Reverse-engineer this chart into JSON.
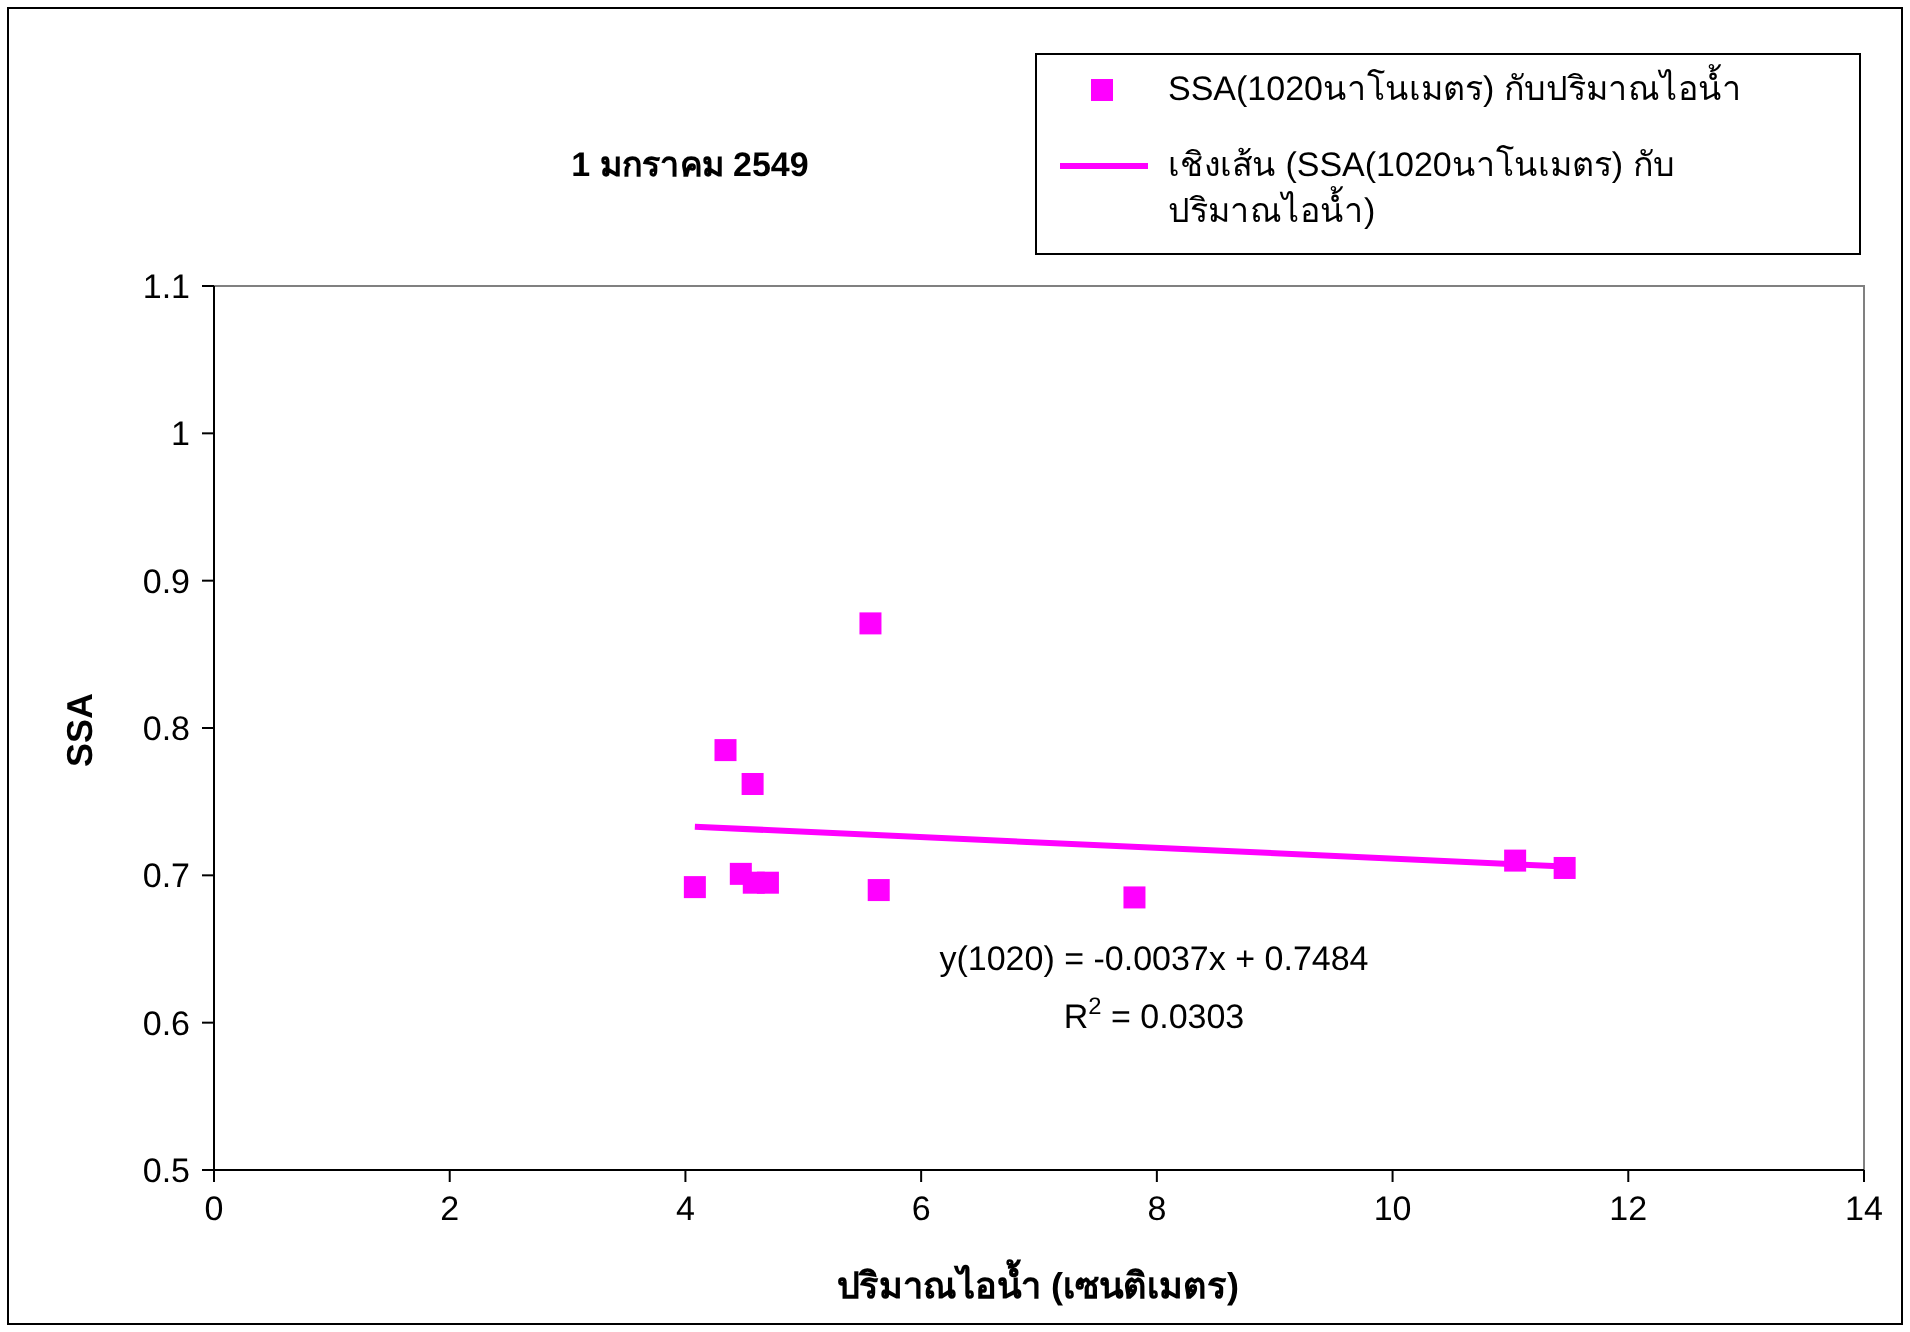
{
  "chart_data": {
    "type": "scatter",
    "title": "1 มกราคม 2549",
    "xlabel": "ปริมาณไอน้ำ (เซนติเมตร)",
    "ylabel": "SSA",
    "xlim": [
      0,
      14
    ],
    "xticks": [
      0,
      2,
      4,
      6,
      8,
      10,
      12,
      14
    ],
    "ylim": [
      0.5,
      1.1
    ],
    "yticks": [
      0.5,
      0.6,
      0.7,
      0.8,
      0.9,
      1,
      1.1
    ],
    "grid": false,
    "legend": "top right",
    "line_style": "solid",
    "annotations": [
      "y(1020) = -0.0037x + 0.7484",
      "R$^{2}$ = 0.0303"
    ],
    "series": [
      {
        "name": "SSA(1020นาโนเมตร) กับปริมาณไอน้ำ",
        "marker": "square",
        "color": "#ff00ff",
        "x": [
          4.08,
          4.34,
          4.57,
          4.47,
          4.58,
          4.7,
          5.57,
          5.64,
          7.81,
          11.04,
          11.46
        ],
        "values": [
          0.692,
          0.785,
          0.762,
          0.701,
          0.695,
          0.695,
          0.871,
          0.69,
          0.685,
          0.71,
          0.705
        ]
      },
      {
        "name": "เชิงเส้น (SSA(1020นาโนเมตร) กับ ปริมาณไอน้ำ)",
        "type": "line",
        "color": "#ff00ff",
        "x": [
          4.08,
          11.46
        ],
        "values": [
          0.733,
          0.706
        ]
      }
    ]
  }
}
